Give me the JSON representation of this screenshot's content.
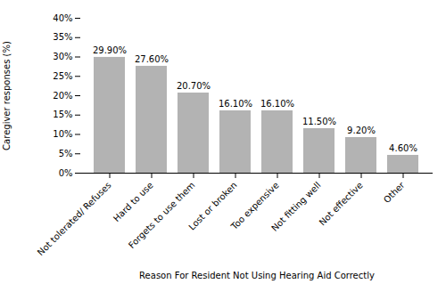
{
  "chart_data": {
    "type": "bar",
    "categories": [
      "Not tolerated/ Refuses",
      "Hard to use",
      "Forgets to use them",
      "Lost or broken",
      "Too expensive",
      "Not fitting well",
      "Not effective",
      "Other"
    ],
    "values": [
      29.9,
      27.6,
      20.7,
      16.1,
      16.1,
      11.5,
      9.2,
      4.6
    ],
    "value_labels": [
      "29.90%",
      "27.60%",
      "20.70%",
      "16.10%",
      "16.10%",
      "11.50%",
      "9.20%",
      "4.60%"
    ],
    "data_labels": true,
    "color": "#b3b3b3",
    "xlabel": "Reason For Resident Not Using Hearing Aid Correctly",
    "ylabel": "Caregiver responses (%)",
    "ylim": [
      0,
      40
    ],
    "yticks": [
      {
        "value": 0,
        "label": "0%"
      },
      {
        "value": 5,
        "label": "5%"
      },
      {
        "value": 10,
        "label": "10%"
      },
      {
        "value": 15,
        "label": "15%"
      },
      {
        "value": 20,
        "label": "20%"
      },
      {
        "value": 25,
        "label": "25%"
      },
      {
        "value": 30,
        "label": "30%"
      },
      {
        "value": 35,
        "label": "35%"
      },
      {
        "value": 40,
        "label": "40%"
      }
    ],
    "grid": false
  }
}
